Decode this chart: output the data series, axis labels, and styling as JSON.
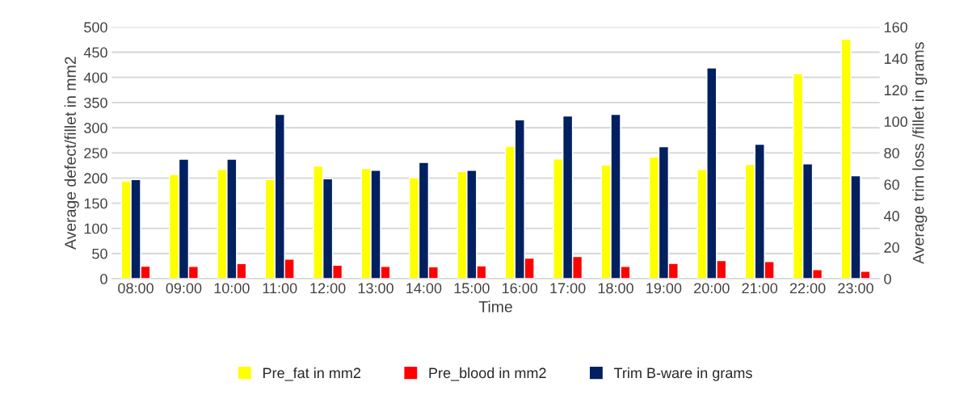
{
  "chart_data": {
    "type": "bar",
    "categories": [
      "08:00",
      "09:00",
      "10:00",
      "11:00",
      "12:00",
      "13:00",
      "14:00",
      "15:00",
      "16:00",
      "17:00",
      "18:00",
      "19:00",
      "20:00",
      "21:00",
      "22:00",
      "23:00"
    ],
    "series": [
      {
        "name": "Pre_fat in mm2",
        "color": "#ffff00",
        "values": [
          194,
          207,
          217,
          197,
          224,
          219,
          201,
          213,
          263,
          238,
          226,
          242,
          217,
          227,
          407,
          476
        ]
      },
      {
        "name": "Pre_blood in mm2",
        "color": "#ff0000",
        "values": [
          25,
          24.5,
          30,
          39,
          27,
          24.5,
          23.5,
          25.5,
          41,
          44,
          24.5,
          30.5,
          36,
          34,
          18,
          15
        ]
      },
      {
        "name": "Trim B-ware in grams",
        "color": "#002060",
        "axis": "y2",
        "values": [
          63,
          76,
          76,
          104.5,
          63.5,
          69,
          74,
          69,
          101,
          103.5,
          104.5,
          84,
          134,
          85.5,
          73,
          65.5
        ]
      }
    ],
    "xlabel": "Time",
    "ylabel": "Average defect/fillet in mm2",
    "y2label": "Average trim loss /fillet in grams",
    "ylim": [
      0,
      500
    ],
    "yticks": [
      0,
      50,
      100,
      150,
      200,
      250,
      300,
      350,
      400,
      450,
      500
    ],
    "y2lim": [
      0,
      160
    ],
    "y2ticks": [
      0,
      20,
      40,
      60,
      80,
      100,
      120,
      140,
      160
    ],
    "grid": "y",
    "legend": "bottom"
  }
}
